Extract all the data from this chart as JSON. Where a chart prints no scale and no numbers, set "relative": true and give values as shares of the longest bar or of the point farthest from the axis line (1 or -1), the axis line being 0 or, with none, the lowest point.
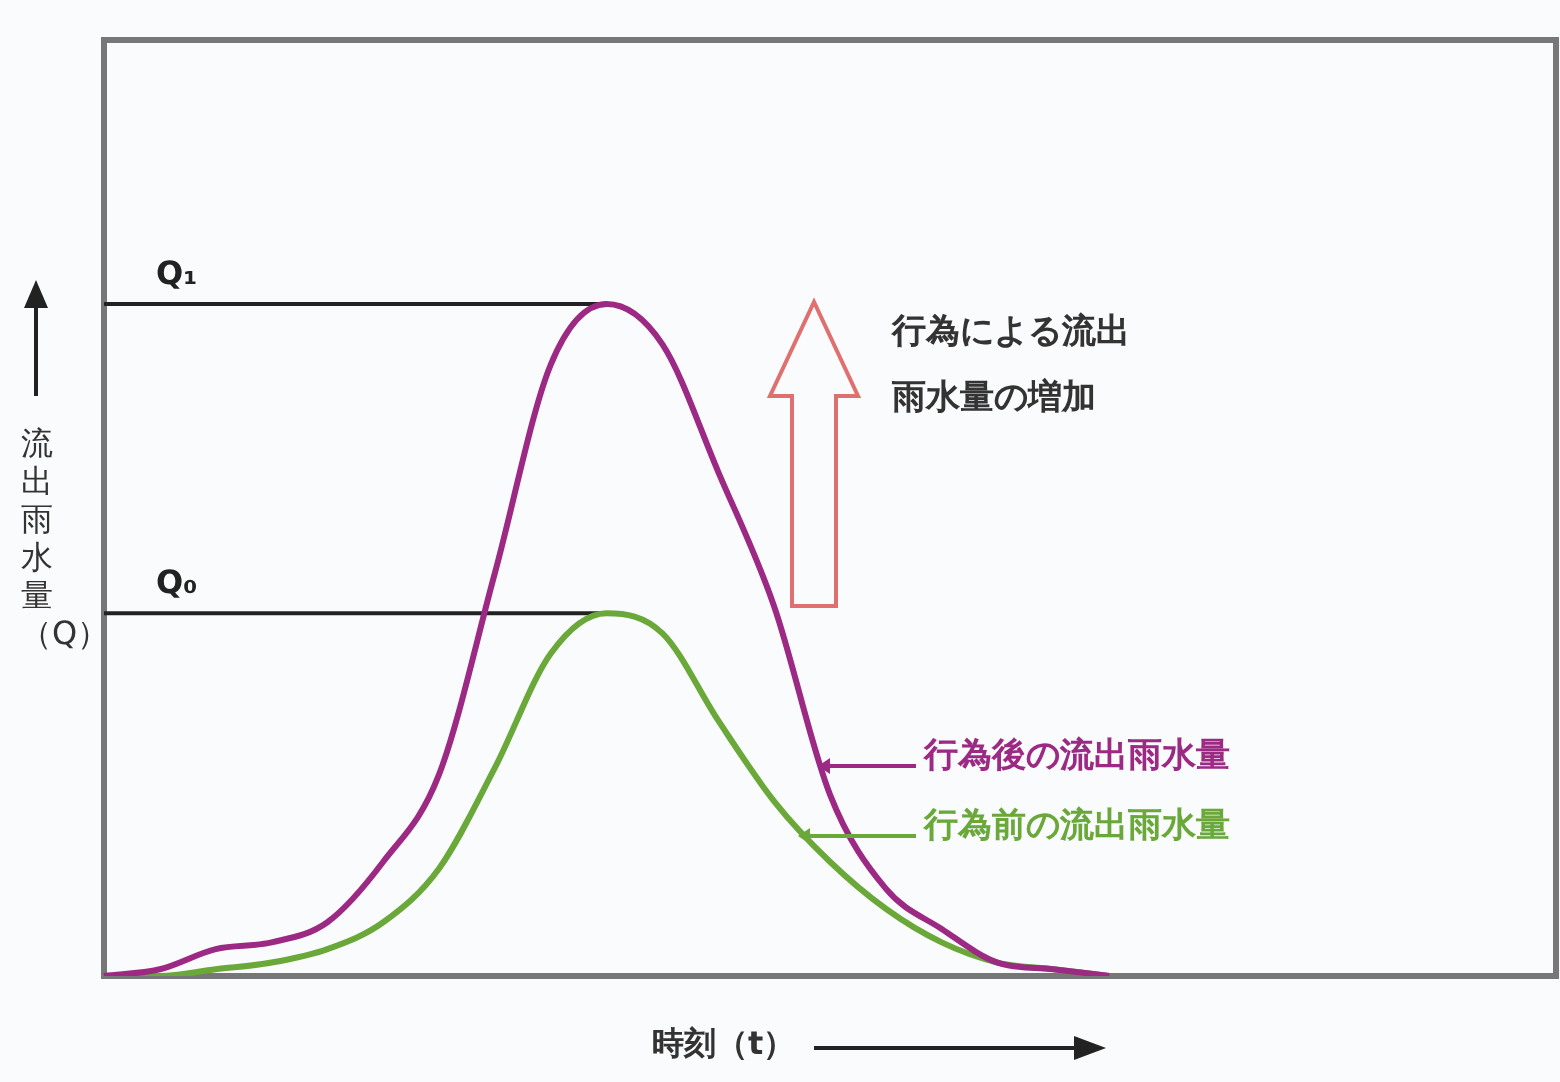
{
  "chart_data": {
    "type": "line",
    "relative": true,
    "xlabel": "時刻（t）",
    "ylabel": "流出雨水量（Q）",
    "categories": [
      null,
      null,
      null,
      null,
      null,
      null,
      null,
      null,
      null,
      null,
      null,
      null,
      null,
      null,
      null,
      null,
      null,
      null,
      null,
      null,
      null,
      null,
      null,
      null,
      null,
      null,
      null
    ],
    "series": [
      {
        "name": "行為後の流出雨水量",
        "color": "#9c2a84",
        "values": [
          0,
          0.01,
          0.04,
          0.05,
          0.08,
          0.17,
          0.3,
          0.6,
          0.91,
          1,
          0.94,
          0.75,
          0.55,
          0.27,
          0.13,
          0.07,
          0.02,
          0.01,
          0,
          null,
          null,
          null,
          null,
          null,
          null,
          null,
          null
        ]
      },
      {
        "name": "行為前の流出雨水量",
        "color": "#6aa83a",
        "values": [
          0,
          0,
          0.01,
          0.02,
          0.04,
          0.08,
          0.16,
          0.31,
          0.48,
          0.54,
          0.51,
          0.38,
          0.26,
          0.17,
          0.1,
          0.05,
          0.02,
          0.01,
          0,
          null,
          null,
          null,
          null,
          null,
          null,
          null,
          null
        ]
      }
    ],
    "ref_lines": [
      {
        "axis": "y",
        "value": 1,
        "label": "Q₁",
        "color": "#222222"
      },
      {
        "axis": "y",
        "value": 0.54,
        "label": "Q₀",
        "color": "#222222"
      }
    ],
    "annotations": [
      "行為による流出雨水量の増加"
    ],
    "legend": "right",
    "marker": "none",
    "line_style": "solid"
  }
}
